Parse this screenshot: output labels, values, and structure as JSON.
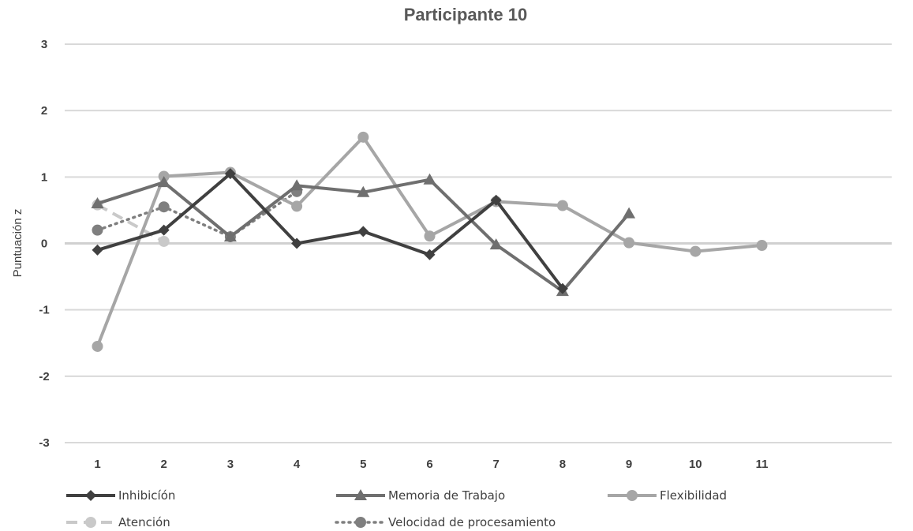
{
  "chart_data": {
    "type": "line",
    "title": "Participante 10",
    "xlabel": "",
    "ylabel": "Puntuación z",
    "categories": [
      "1",
      "2",
      "3",
      "4",
      "5",
      "6",
      "7",
      "8",
      "9",
      "10",
      "11"
    ],
    "y_ticks": [
      "3",
      "2",
      "1",
      "0",
      "-1",
      "-2",
      "-3"
    ],
    "ylim": [
      -3,
      3
    ],
    "grid": true,
    "legend_position": "bottom",
    "series": [
      {
        "name": "Inhibicíón",
        "color": "#404040",
        "marker": "diamond",
        "dash": "solid",
        "values": [
          -0.1,
          0.2,
          1.05,
          0.0,
          0.18,
          -0.17,
          0.65,
          -0.68,
          null,
          null,
          null
        ]
      },
      {
        "name": "Memoria de Trabajo",
        "color": "#6f6f6f",
        "marker": "triangle",
        "dash": "solid",
        "values": [
          0.6,
          0.92,
          0.1,
          0.87,
          0.77,
          0.96,
          -0.02,
          -0.72,
          0.45,
          null,
          null
        ]
      },
      {
        "name": "Flexibilidad",
        "color": "#a6a6a6",
        "marker": "circle",
        "dash": "solid",
        "values": [
          -1.55,
          1.01,
          1.07,
          0.56,
          1.6,
          0.11,
          0.63,
          0.57,
          0.01,
          -0.12,
          -0.03
        ]
      },
      {
        "name": "Atención",
        "color": "#c9c9c9",
        "marker": "circle",
        "dash": "dashed",
        "values": [
          0.58,
          0.03,
          null,
          null,
          null,
          null,
          null,
          null,
          null,
          null,
          null
        ]
      },
      {
        "name": "Velocidad de procesamiento",
        "color": "#7f7f7f",
        "marker": "circle",
        "dash": "dotted",
        "values": [
          0.2,
          0.55,
          0.1,
          0.78,
          null,
          null,
          null,
          null,
          null,
          null,
          null
        ]
      }
    ]
  }
}
